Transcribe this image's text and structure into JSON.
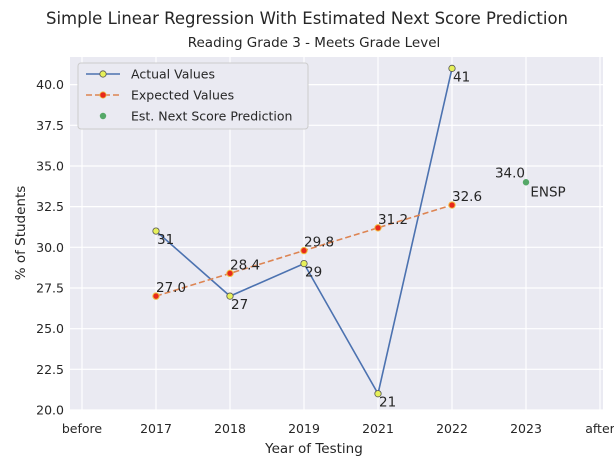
{
  "chart_data": {
    "type": "line",
    "title": "Simple Linear Regression With Estimated Next Score Prediction",
    "subtitle": "Reading Grade 3 - Meets Grade Level",
    "xlabel": "Year of Testing",
    "ylabel": "% of Students",
    "x_tick_labels": [
      "before",
      "2017",
      "2018",
      "2019",
      "2021",
      "2022",
      "2023",
      "after"
    ],
    "y_ticks": [
      20.0,
      22.5,
      25.0,
      27.5,
      30.0,
      32.5,
      35.0,
      37.5,
      40.0
    ],
    "y_tick_labels": [
      "20.0",
      "22.5",
      "25.0",
      "27.5",
      "30.0",
      "32.5",
      "35.0",
      "37.5",
      "40.0"
    ],
    "ylim": [
      20.0,
      41.7
    ],
    "grid": true,
    "legend_position": "top-left",
    "series": [
      {
        "name": "Actual Values",
        "style": "solid-line-with-markers",
        "color": "#4c72b0",
        "marker_fill": "#e6f05a",
        "x": [
          "2017",
          "2018",
          "2019",
          "2021",
          "2022"
        ],
        "values": [
          31,
          27,
          29,
          21,
          41
        ],
        "labels": [
          "31",
          "27",
          "29",
          "21",
          "41"
        ]
      },
      {
        "name": "Expected Values",
        "style": "dashed-line-with-markers",
        "color": "#dd8452",
        "marker_fill": "#e8291c",
        "x": [
          "2017",
          "2018",
          "2019",
          "2021",
          "2022"
        ],
        "values": [
          27.0,
          28.4,
          29.8,
          31.2,
          32.6
        ],
        "labels": [
          "27.0",
          "28.4",
          "29.8",
          "31.2",
          "32.6"
        ]
      },
      {
        "name": "Est. Next Score Prediction",
        "style": "marker",
        "color": "#55a868",
        "x": [
          "2023"
        ],
        "values": [
          34.0
        ],
        "labels": [
          "34.0"
        ],
        "annotation": "ENSP"
      }
    ]
  }
}
